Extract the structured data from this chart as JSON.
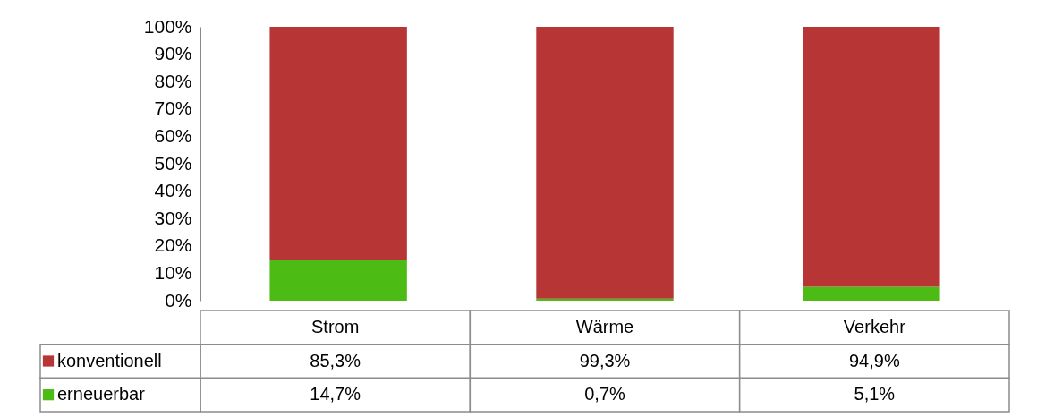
{
  "chart_data": {
    "type": "bar",
    "stacked": true,
    "categories": [
      "Strom",
      "Wärme",
      "Verkehr"
    ],
    "series": [
      {
        "name": "erneuerbar",
        "color": "#4cbb14",
        "values": [
          14.7,
          0.7,
          5.1
        ],
        "value_labels": [
          "14,7%",
          "0,7%",
          "5,1%"
        ]
      },
      {
        "name": "konventionell",
        "color": "#b83535",
        "values": [
          85.3,
          99.3,
          94.9
        ],
        "value_labels": [
          "85,3%",
          "99,3%",
          "94,9%"
        ]
      }
    ],
    "ylim": [
      0,
      100
    ],
    "yticks": [
      {
        "value": 0,
        "label": "0%"
      },
      {
        "value": 10,
        "label": "10%"
      },
      {
        "value": 20,
        "label": "20%"
      },
      {
        "value": 30,
        "label": "30%"
      },
      {
        "value": 40,
        "label": "40%"
      },
      {
        "value": 50,
        "label": "50%"
      },
      {
        "value": 60,
        "label": "60%"
      },
      {
        "value": 70,
        "label": "70%"
      },
      {
        "value": 80,
        "label": "80%"
      },
      {
        "value": 90,
        "label": "90%"
      },
      {
        "value": 100,
        "label": "100%"
      }
    ],
    "grid": false,
    "legend": "bottom left"
  }
}
